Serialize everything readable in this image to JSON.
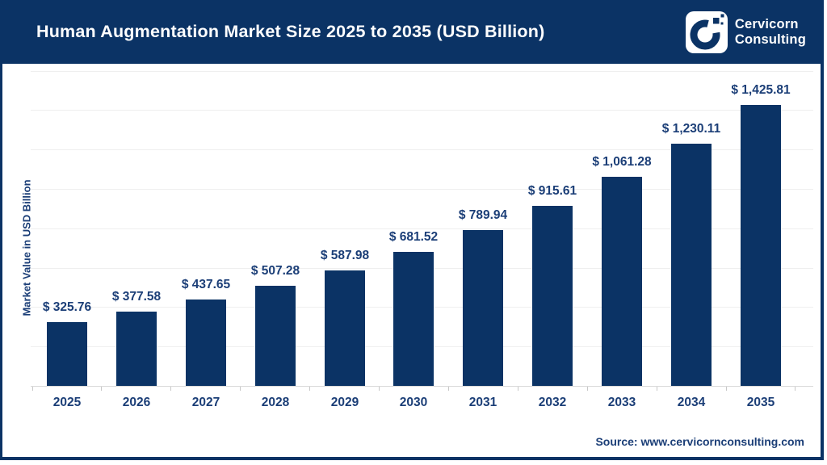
{
  "header": {
    "title": "Human Augmentation Market Size 2025 to 2035 (USD Billion)",
    "logo": {
      "line1": "Cervicorn",
      "line2": "Consulting"
    }
  },
  "chart_data": {
    "type": "bar",
    "title": "Human Augmentation Market Size 2025 to 2035 (USD Billion)",
    "categories": [
      "2025",
      "2026",
      "2027",
      "2028",
      "2029",
      "2030",
      "2031",
      "2032",
      "2033",
      "2034",
      "2035"
    ],
    "values": [
      325.76,
      377.58,
      437.65,
      507.28,
      587.98,
      681.52,
      789.94,
      915.61,
      1061.28,
      1230.11,
      1425.81
    ],
    "value_labels": [
      "$ 325.76",
      "$ 377.58",
      "$ 437.65",
      "$ 507.28",
      "$ 587.98",
      "$ 681.52",
      "$ 789.94",
      "$ 915.61",
      "$ 1,061.28",
      "$ 1,230.11",
      "$ 1,425.81"
    ],
    "xlabel": "",
    "ylabel": "Market Value in USD Billion",
    "ylim": [
      0,
      1600
    ],
    "grid_step": 200,
    "grid": "horizontal-light",
    "legend": "none",
    "bar_color": "#0b3365",
    "label_color": "#1b3e77"
  },
  "footer": {
    "source": "Source: www.cervicornconsulting.com"
  },
  "colors": {
    "navy": "#0b3365",
    "text_navy": "#1b3e77",
    "header_text": "#ffffff",
    "gridline": "#efefef",
    "axis_line": "#d9d9d9"
  }
}
